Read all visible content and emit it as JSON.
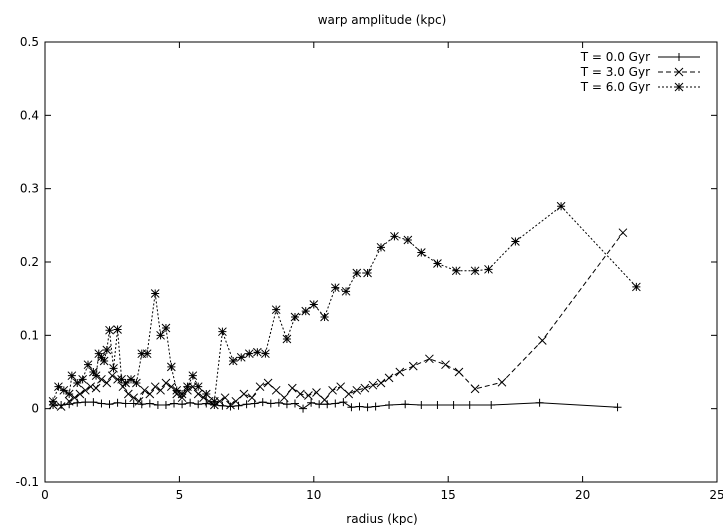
{
  "chart_data": {
    "type": "line",
    "title": "warp amplitude (kpc)",
    "xlabel": "radius (kpc)",
    "ylabel": "",
    "xlim": [
      0,
      25
    ],
    "ylim": [
      -0.1,
      0.5
    ],
    "xticks": [
      0,
      5,
      10,
      15,
      20,
      25
    ],
    "yticks": [
      -0.1,
      0,
      0.1,
      0.2,
      0.3,
      0.4,
      0.5
    ],
    "xtick_labels": [
      "0",
      "5",
      "10",
      "15",
      "20",
      "25"
    ],
    "ytick_labels": [
      "-0.1",
      "0",
      "0.1",
      "0.2",
      "0.3",
      "0.4",
      "0.5"
    ],
    "grid": false,
    "legend_position": "top-right",
    "series": [
      {
        "name": "T = 0.0 Gyr",
        "line_style": "solid",
        "marker": "plus",
        "x": [
          0.3,
          0.6,
          0.9,
          1.2,
          1.5,
          1.8,
          2.1,
          2.4,
          2.7,
          3.0,
          3.3,
          3.6,
          3.9,
          4.2,
          4.5,
          4.8,
          5.1,
          5.4,
          5.7,
          6.0,
          6.3,
          6.6,
          6.9,
          7.2,
          7.5,
          7.8,
          8.1,
          8.4,
          8.7,
          9.0,
          9.3,
          9.6,
          9.9,
          10.2,
          10.5,
          10.8,
          11.1,
          11.4,
          11.7,
          12.0,
          12.3,
          12.8,
          13.4,
          14.0,
          14.6,
          15.2,
          15.8,
          16.6,
          18.4,
          21.3
        ],
        "y": [
          0.005,
          0.005,
          0.006,
          0.008,
          0.009,
          0.009,
          0.007,
          0.006,
          0.008,
          0.007,
          0.007,
          0.006,
          0.007,
          0.005,
          0.005,
          0.007,
          0.006,
          0.008,
          0.006,
          0.007,
          0.005,
          0.004,
          0.003,
          0.004,
          0.006,
          0.007,
          0.009,
          0.007,
          0.008,
          0.006,
          0.007,
          0.0,
          0.008,
          0.006,
          0.006,
          0.007,
          0.009,
          0.002,
          0.003,
          0.002,
          0.003,
          0.005,
          0.006,
          0.005,
          0.005,
          0.005,
          0.005,
          0.005,
          0.008,
          0.002
        ]
      },
      {
        "name": "T = 3.0 Gyr",
        "line_style": "dashed",
        "marker": "x",
        "x": [
          0.3,
          0.6,
          0.9,
          1.1,
          1.3,
          1.5,
          1.7,
          1.9,
          2.1,
          2.3,
          2.5,
          2.7,
          2.9,
          3.1,
          3.3,
          3.5,
          3.7,
          3.9,
          4.1,
          4.3,
          4.5,
          4.7,
          4.9,
          5.1,
          5.3,
          5.5,
          5.7,
          5.9,
          6.1,
          6.3,
          6.5,
          6.7,
          6.9,
          7.1,
          7.4,
          7.7,
          8.0,
          8.3,
          8.6,
          8.9,
          9.2,
          9.5,
          9.8,
          10.1,
          10.4,
          10.7,
          11.0,
          11.3,
          11.6,
          11.9,
          12.2,
          12.5,
          12.8,
          13.2,
          13.7,
          14.3,
          14.9,
          15.4,
          16.0,
          17.0,
          18.5,
          21.5
        ],
        "y": [
          0.005,
          0.003,
          0.01,
          0.015,
          0.02,
          0.025,
          0.03,
          0.028,
          0.04,
          0.035,
          0.045,
          0.04,
          0.03,
          0.02,
          0.015,
          0.01,
          0.025,
          0.02,
          0.03,
          0.025,
          0.035,
          0.03,
          0.02,
          0.015,
          0.025,
          0.03,
          0.02,
          0.015,
          0.01,
          0.005,
          0.01,
          0.015,
          0.005,
          0.01,
          0.02,
          0.015,
          0.03,
          0.035,
          0.025,
          0.015,
          0.028,
          0.02,
          0.018,
          0.022,
          0.012,
          0.025,
          0.03,
          0.02,
          0.025,
          0.028,
          0.032,
          0.035,
          0.042,
          0.05,
          0.058,
          0.068,
          0.06,
          0.05,
          0.027,
          0.036,
          0.093,
          0.24
        ]
      },
      {
        "name": "T = 6.0 Gyr",
        "line_style": "dotted",
        "marker": "star",
        "x": [
          0.3,
          0.5,
          0.7,
          0.9,
          1.0,
          1.2,
          1.4,
          1.6,
          1.8,
          1.9,
          2.0,
          2.1,
          2.2,
          2.3,
          2.4,
          2.55,
          2.7,
          2.85,
          3.0,
          3.2,
          3.4,
          3.6,
          3.8,
          4.1,
          4.3,
          4.5,
          4.7,
          4.9,
          5.1,
          5.3,
          5.5,
          5.7,
          6.0,
          6.3,
          6.6,
          7.0,
          7.3,
          7.6,
          7.9,
          8.2,
          8.6,
          9.0,
          9.3,
          9.7,
          10.0,
          10.4,
          10.8,
          11.2,
          11.6,
          12.0,
          12.5,
          13.0,
          13.5,
          14.0,
          14.6,
          15.3,
          16.0,
          16.5,
          17.5,
          19.2,
          22.0
        ],
        "y": [
          0.01,
          0.03,
          0.025,
          0.02,
          0.045,
          0.035,
          0.04,
          0.06,
          0.05,
          0.045,
          0.075,
          0.07,
          0.065,
          0.08,
          0.107,
          0.055,
          0.108,
          0.04,
          0.035,
          0.04,
          0.035,
          0.075,
          0.075,
          0.157,
          0.1,
          0.11,
          0.057,
          0.025,
          0.02,
          0.03,
          0.045,
          0.03,
          0.02,
          0.01,
          0.105,
          0.065,
          0.07,
          0.075,
          0.077,
          0.075,
          0.135,
          0.095,
          0.125,
          0.133,
          0.142,
          0.125,
          0.165,
          0.16,
          0.185,
          0.185,
          0.22,
          0.235,
          0.23,
          0.213,
          0.198,
          0.188,
          0.188,
          0.19,
          0.228,
          0.276,
          0.166
        ]
      }
    ]
  }
}
